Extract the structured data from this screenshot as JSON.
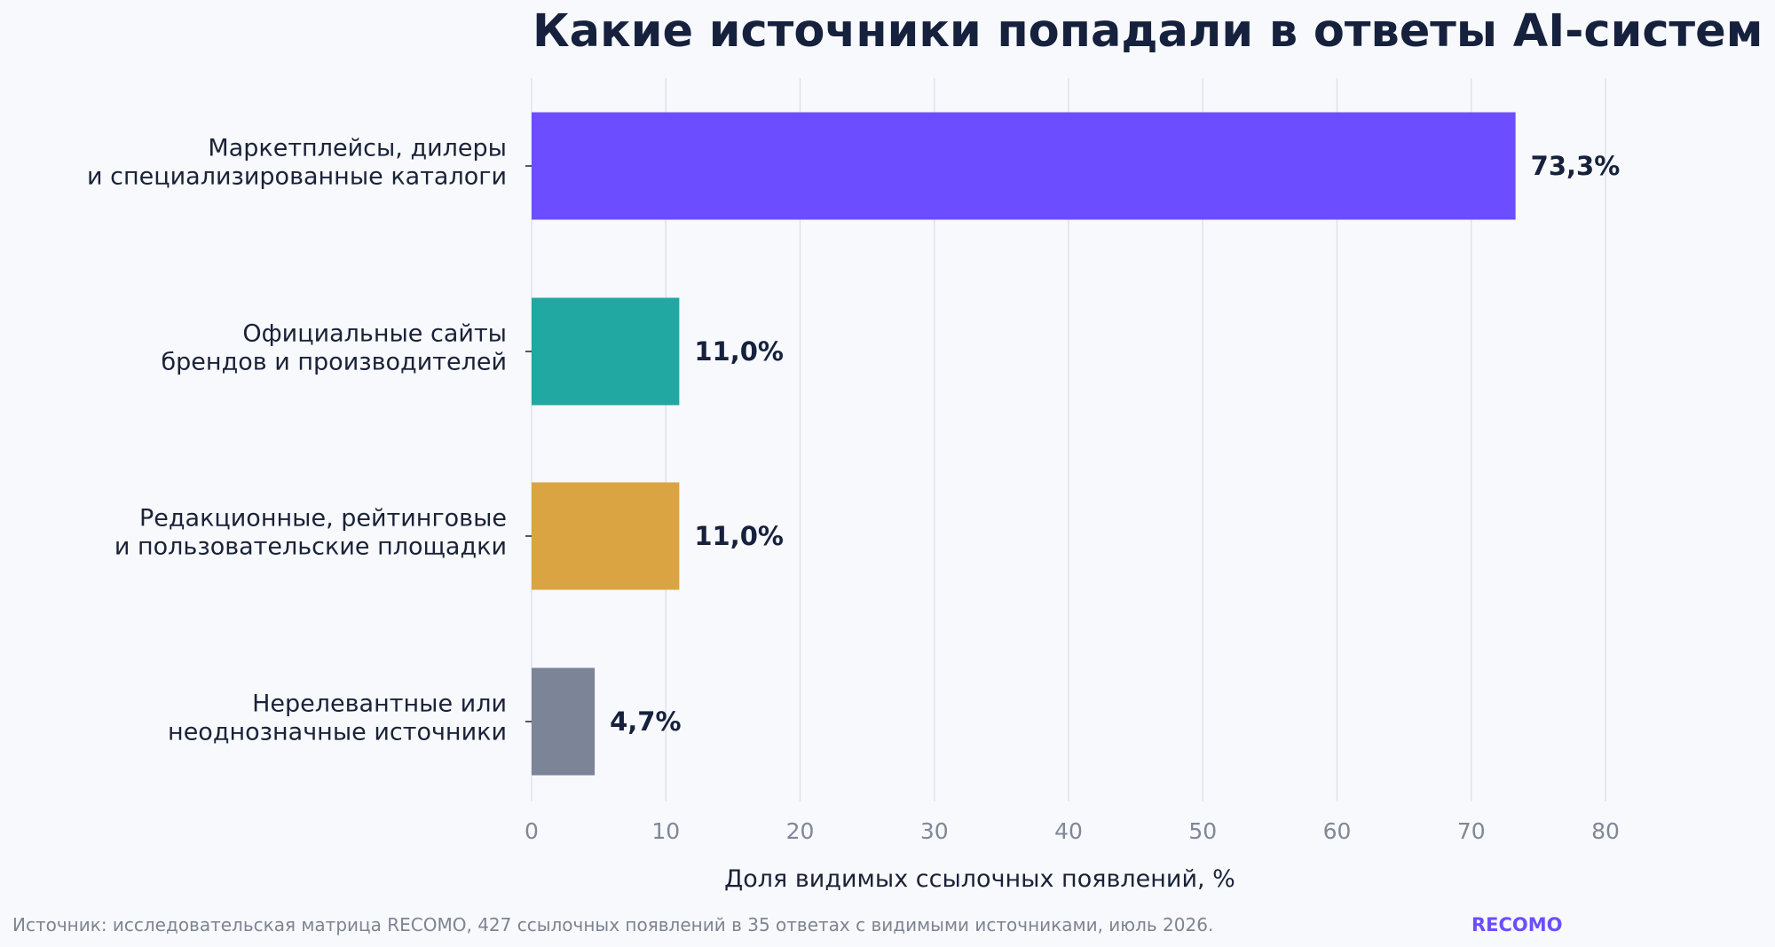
{
  "chart_data": {
    "type": "bar",
    "orientation": "horizontal",
    "title": "Какие источники попадали в ответы AI-систем",
    "categories": [
      [
        "Маркетплейсы, дилеры",
        "и специализированные каталоги"
      ],
      [
        "Официальные сайты",
        "брендов и производителей"
      ],
      [
        "Редакционные, рейтинговые",
        "и пользовательские площадки"
      ],
      [
        "Нерелевантные или",
        "неоднозначные источники"
      ]
    ],
    "values": [
      73.3,
      11.0,
      11.0,
      4.7
    ],
    "value_labels": [
      "73,3%",
      "11,0%",
      "11,0%",
      "4,7%"
    ],
    "colors": [
      "#6c4dff",
      "#21a8a2",
      "#d9a441",
      "#7c8497"
    ],
    "xlabel": "Доля видимых ссылочных появлений, %",
    "ylabel": "",
    "xlim": [
      0,
      80
    ],
    "xticks": [
      0,
      10,
      20,
      30,
      40,
      50,
      60,
      70,
      80
    ],
    "grid": "vertical"
  },
  "footer": {
    "source": "Источник: исследовательская матрица RECOMO, 427 ссылочных появлений в 35 ответах с видимыми источниками, июль 2026.",
    "brand": "RECOMO",
    "brand_color": "#6c4dff"
  }
}
